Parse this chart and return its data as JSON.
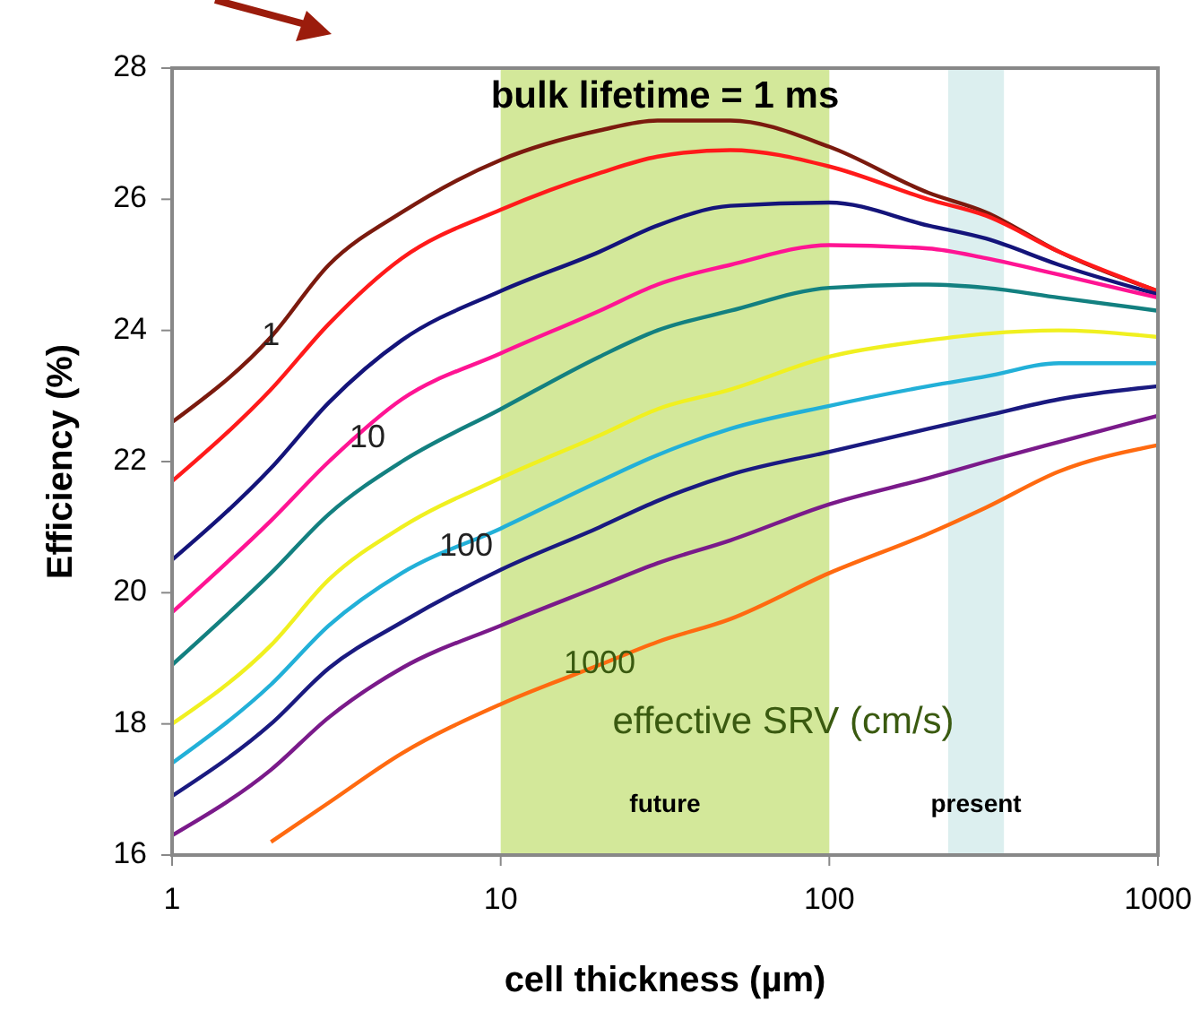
{
  "chart_data": {
    "type": "line",
    "title": "bulk lifetime = 1 ms",
    "xlabel": "cell thickness (µm)",
    "ylabel": "Efficiency (%)",
    "log": "x",
    "xlim": [
      1,
      1000
    ],
    "xticks": [
      1,
      10,
      100,
      1000
    ],
    "ylim": [
      16,
      28
    ],
    "yticks": [
      16,
      18,
      20,
      22,
      24,
      26,
      28
    ],
    "grid": false,
    "marker": "none",
    "line_style": "solid",
    "x": [
      1,
      2,
      3,
      5,
      10,
      20,
      30,
      50,
      100,
      200,
      300,
      500,
      1000
    ],
    "series": [
      {
        "color": "#7b1a0e",
        "values": [
          22.6,
          23.9,
          25.0,
          25.8,
          26.6,
          27.05,
          27.2,
          27.2,
          26.8,
          26.1,
          25.8,
          25.2,
          24.6
        ]
      },
      {
        "color": "#ff1a1a",
        "values": [
          21.7,
          23.1,
          24.1,
          25.1,
          25.84,
          26.4,
          26.65,
          26.75,
          26.5,
          26.0,
          25.75,
          25.2,
          24.6
        ]
      },
      {
        "color": "#14147a",
        "values": [
          20.5,
          21.9,
          22.9,
          23.85,
          24.6,
          25.2,
          25.6,
          25.9,
          25.95,
          25.6,
          25.4,
          25.0,
          24.55
        ]
      },
      {
        "color": "#ff1493",
        "values": [
          19.7,
          21.1,
          22.0,
          22.95,
          23.65,
          24.3,
          24.7,
          25.0,
          25.3,
          25.25,
          25.1,
          24.85,
          24.5
        ]
      },
      {
        "color": "#138080",
        "values": [
          18.9,
          20.3,
          21.2,
          22.0,
          22.8,
          23.6,
          24.0,
          24.3,
          24.65,
          24.7,
          24.65,
          24.5,
          24.3
        ]
      },
      {
        "color": "#f0f020",
        "values": [
          18.0,
          19.2,
          20.2,
          21.0,
          21.75,
          22.4,
          22.8,
          23.1,
          23.6,
          23.85,
          23.95,
          24.0,
          23.9
        ]
      },
      {
        "color": "#22b0d8",
        "values": [
          17.4,
          18.6,
          19.5,
          20.3,
          20.98,
          21.7,
          22.1,
          22.5,
          22.85,
          23.15,
          23.3,
          23.5,
          23.5
        ]
      },
      {
        "color": "#1a1a80",
        "values": [
          16.9,
          18.0,
          18.85,
          19.55,
          20.35,
          21.0,
          21.4,
          21.8,
          22.15,
          22.5,
          22.7,
          22.95,
          23.15
        ]
      },
      {
        "color": "#7a1a8a",
        "values": [
          16.3,
          17.3,
          18.1,
          18.85,
          19.5,
          20.1,
          20.45,
          20.8,
          21.35,
          21.75,
          22.0,
          22.3,
          22.7
        ]
      },
      {
        "color": "#ff6a10",
        "values": [
          null,
          16.2,
          16.8,
          17.55,
          18.3,
          18.9,
          19.25,
          19.6,
          20.3,
          20.9,
          21.3,
          21.85,
          22.25
        ]
      }
    ],
    "bands": [
      {
        "axis": "x",
        "from": 10,
        "to": 100,
        "label": "future",
        "color": "#d3e89a"
      },
      {
        "axis": "x",
        "from": 230,
        "to": 340,
        "label": "present",
        "color": "#dcefef"
      }
    ],
    "annotations": [
      {
        "text": "1",
        "x": 2,
        "y": 23.9
      },
      {
        "text": "10",
        "x": 3.93,
        "y": 22.35
      },
      {
        "text": "100",
        "x": 7.85,
        "y": 20.7
      },
      {
        "text": "1000",
        "x": 20,
        "y": 18.9
      },
      "effective SRV (cm/s)"
    ]
  }
}
